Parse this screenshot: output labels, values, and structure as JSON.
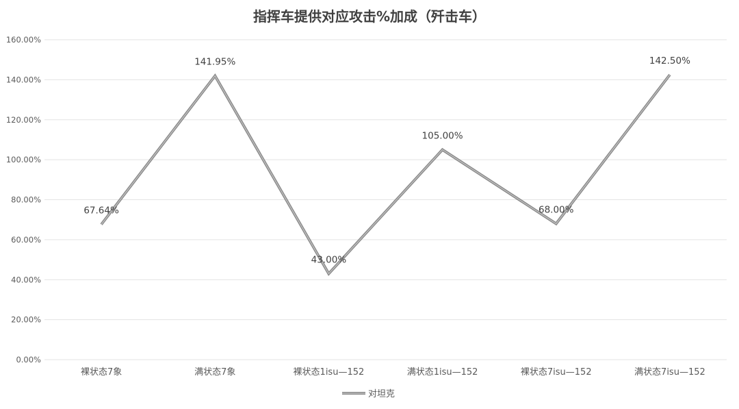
{
  "chart_data": {
    "type": "line",
    "title": "指挥车提供对应攻击%加成（歼击车）",
    "categories": [
      "裸状态7象",
      "满状态7象",
      "裸状态1isu—152",
      "满状态1isu—152",
      "裸状态7isu—152",
      "满状态7isu—152"
    ],
    "series": [
      {
        "name": "对坦克",
        "values": [
          67.64,
          141.95,
          43.0,
          105.0,
          68.0,
          142.5
        ],
        "labels": [
          "67.64%",
          "141.95%",
          "43.00%",
          "105.00%",
          "68.00%",
          "142.50%"
        ]
      }
    ],
    "ylim": [
      0,
      160
    ],
    "yticks": [
      0,
      20,
      40,
      60,
      80,
      100,
      120,
      140,
      160
    ],
    "ytick_labels": [
      "0.00%",
      "20.00%",
      "40.00%",
      "60.00%",
      "80.00%",
      "100.00%",
      "120.00%",
      "140.00%",
      "160.00%"
    ],
    "grid": true,
    "legend_position": "bottom",
    "colors": {
      "line_outer": "#8a8a8a",
      "line_inner": "#c4c4c4",
      "grid": "#e3e3e3",
      "axis": "#bfbfbf",
      "text": "#595959"
    }
  }
}
